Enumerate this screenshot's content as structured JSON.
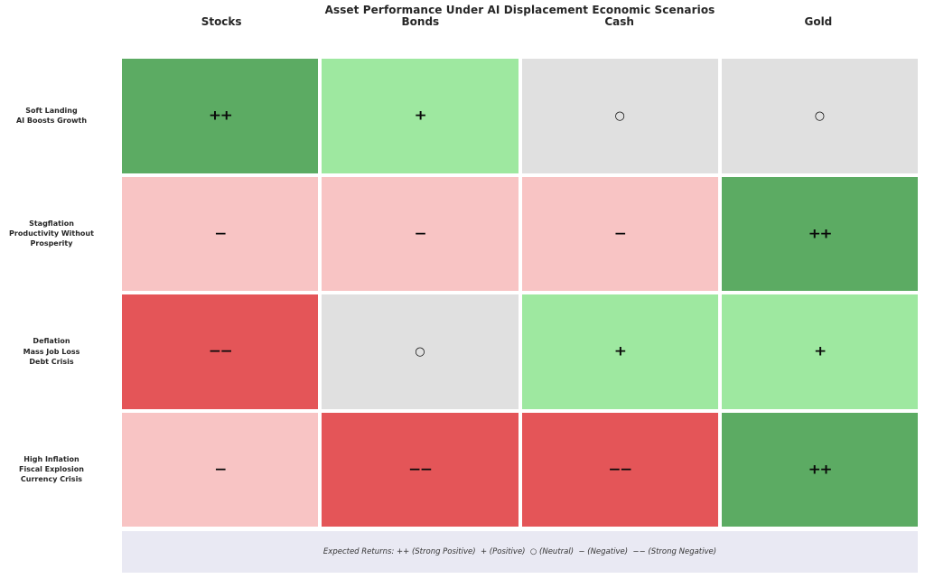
{
  "title": "Asset Performance Under AI Displacement Economic Scenarios",
  "legend_text": "Expected Returns: ++ (Strong Positive)  + (Positive)  ○ (Neutral)  − (Negative)  −− (Strong Negative)",
  "chart_data": {
    "type": "heatmap",
    "title": "Asset Performance Under AI Displacement Economic Scenarios",
    "columns": [
      "Stocks",
      "Bonds",
      "Cash",
      "Gold"
    ],
    "rows": [
      {
        "scenario": "Soft Landing",
        "label_lines": [
          "Soft Landing",
          "AI Boosts Growth"
        ],
        "ratings": [
          "strong_positive",
          "positive",
          "neutral",
          "neutral"
        ]
      },
      {
        "scenario": "Stagflation",
        "label_lines": [
          "Stagflation",
          "Productivity Without",
          "Prosperity"
        ],
        "ratings": [
          "negative",
          "negative",
          "negative",
          "strong_positive"
        ]
      },
      {
        "scenario": "Deflation",
        "label_lines": [
          "Deflation",
          "Mass Job Loss",
          "Debt Crisis"
        ],
        "ratings": [
          "strong_negative",
          "neutral",
          "positive",
          "positive"
        ]
      },
      {
        "scenario": "High Inflation",
        "label_lines": [
          "High Inflation",
          "Fiscal Explosion",
          "Currency Crisis"
        ],
        "ratings": [
          "negative",
          "strong_negative",
          "strong_negative",
          "strong_positive"
        ]
      }
    ],
    "rating_scale": {
      "strong_positive": {
        "symbol": "++",
        "label": "Strong Positive",
        "color": "#5cab63"
      },
      "positive": {
        "symbol": "+",
        "label": "Positive",
        "color": "#9ee8a0"
      },
      "neutral": {
        "symbol": "○",
        "label": "Neutral",
        "color": "#e0e0e0"
      },
      "negative": {
        "symbol": "−",
        "label": "Negative",
        "color": "#f8c4c4"
      },
      "strong_negative": {
        "symbol": "−−",
        "label": "Strong Negative",
        "color": "#e45558"
      }
    },
    "legend_position": "bottom",
    "legend_background": "#e9e9f3",
    "grid": "off",
    "symbol_color": "#0a0a0a"
  }
}
